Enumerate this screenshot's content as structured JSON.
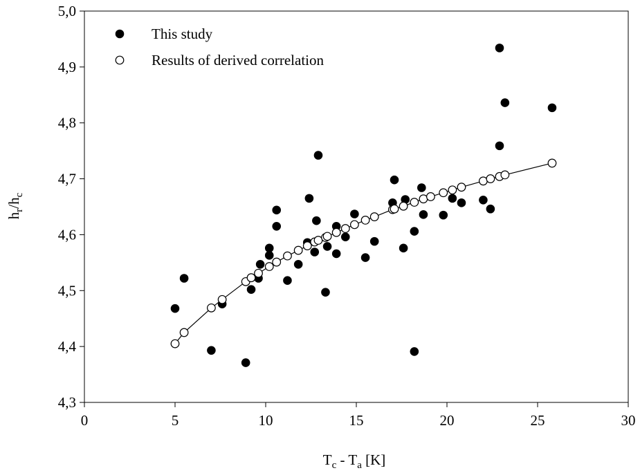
{
  "chart_data": {
    "type": "scatter",
    "title": "",
    "xlabel": {
      "main": "T",
      "sub1": "c",
      "mid": " - T",
      "sub2": "a",
      "tail": " [K]"
    },
    "ylabel": {
      "main": "h",
      "sub1": "r",
      "mid": "/h",
      "sub2": "c"
    },
    "xlim": [
      0,
      30
    ],
    "ylim": [
      4.3,
      5.0
    ],
    "x_ticks": [
      0,
      5,
      10,
      15,
      20,
      25,
      30
    ],
    "x_tick_labels": [
      "0",
      "5",
      "10",
      "15",
      "20",
      "25",
      "30"
    ],
    "y_ticks": [
      4.3,
      4.4,
      4.5,
      4.6,
      4.7,
      4.8,
      4.9,
      5.0
    ],
    "y_tick_labels": [
      "4,3",
      "4,4",
      "4,5",
      "4,6",
      "4,7",
      "4,8",
      "4,9",
      "5,0"
    ],
    "grid": false,
    "legend_position": "top-left",
    "series": [
      {
        "name": "This study",
        "marker": "filled-circle",
        "x": [
          5.0,
          5.5,
          7.0,
          7.6,
          8.9,
          9.2,
          9.6,
          9.7,
          10.2,
          10.2,
          10.6,
          10.6,
          11.2,
          11.8,
          12.3,
          12.4,
          12.7,
          12.8,
          12.9,
          13.3,
          13.4,
          13.9,
          13.9,
          14.4,
          14.9,
          15.5,
          16.0,
          17.0,
          17.1,
          17.6,
          17.7,
          18.2,
          18.2,
          18.6,
          18.7,
          19.8,
          20.3,
          20.8,
          22.0,
          22.4,
          22.9,
          22.9,
          23.2,
          25.8
        ],
        "y": [
          4.468,
          4.522,
          4.393,
          4.476,
          4.371,
          4.502,
          4.522,
          4.547,
          4.576,
          4.563,
          4.644,
          4.615,
          4.518,
          4.547,
          4.586,
          4.665,
          4.569,
          4.625,
          4.742,
          4.497,
          4.579,
          4.566,
          4.615,
          4.596,
          4.637,
          4.559,
          4.588,
          4.657,
          4.698,
          4.576,
          4.663,
          4.606,
          4.391,
          4.684,
          4.636,
          4.635,
          4.665,
          4.657,
          4.662,
          4.646,
          4.934,
          4.759,
          4.836,
          4.827
        ]
      },
      {
        "name": "Results of derived correlation",
        "marker": "open-circle",
        "line": true,
        "x": [
          5.0,
          5.5,
          7.0,
          7.6,
          8.9,
          9.2,
          9.6,
          10.2,
          10.6,
          11.2,
          11.8,
          12.3,
          12.7,
          12.9,
          13.3,
          13.4,
          13.9,
          14.4,
          14.9,
          15.5,
          16.0,
          17.0,
          17.1,
          17.6,
          18.2,
          18.7,
          19.1,
          19.8,
          20.3,
          20.8,
          22.0,
          22.4,
          22.9,
          23.2,
          25.8
        ],
        "y": [
          4.405,
          4.425,
          4.469,
          4.484,
          4.516,
          4.523,
          4.531,
          4.543,
          4.551,
          4.562,
          4.572,
          4.58,
          4.587,
          4.59,
          4.595,
          4.597,
          4.604,
          4.611,
          4.618,
          4.626,
          4.632,
          4.645,
          4.646,
          4.651,
          4.658,
          4.664,
          4.668,
          4.675,
          4.68,
          4.685,
          4.696,
          4.7,
          4.704,
          4.707,
          4.728
        ]
      }
    ]
  }
}
